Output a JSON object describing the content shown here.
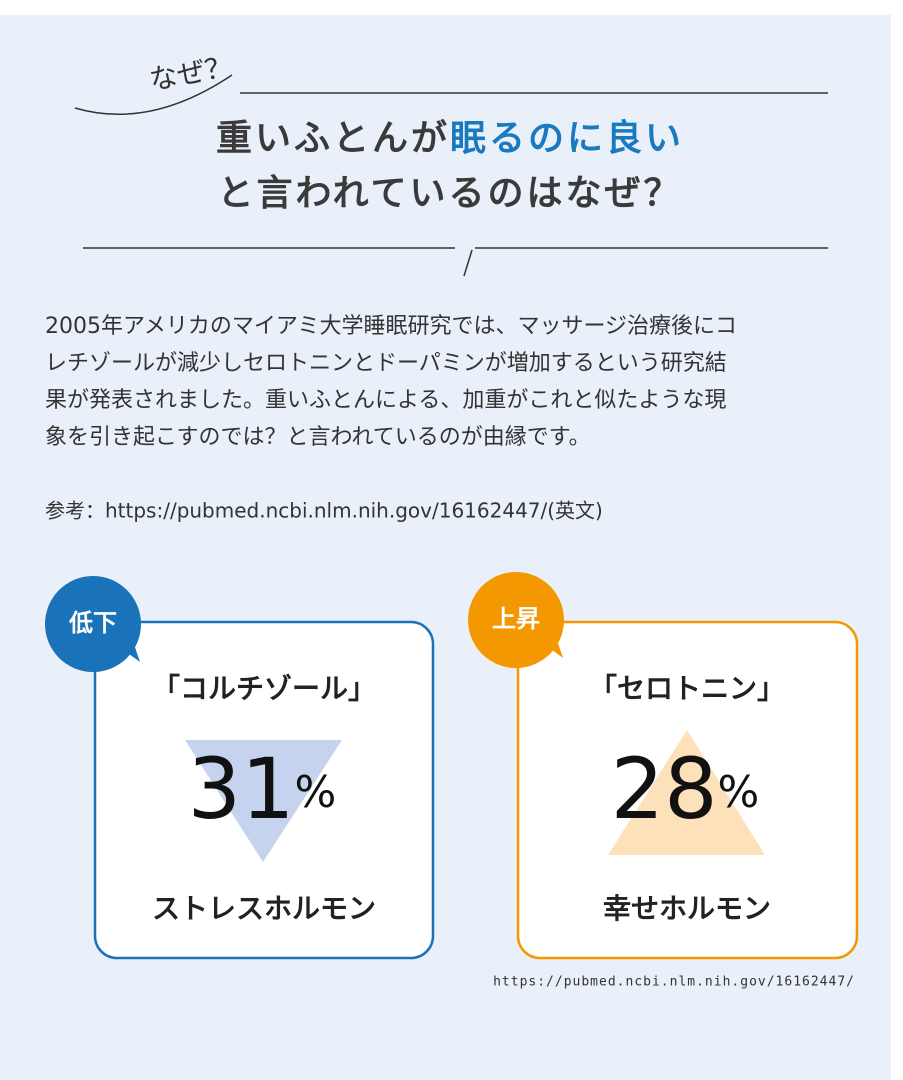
{
  "header": {
    "eyebrow": "なぜ？",
    "title": {
      "line1_plain": "重いふとんが",
      "line1_highlight": "眠るのに良い",
      "line2": "と言われているのはなぜ？"
    }
  },
  "body": {
    "paragraph_lines": [
      "2005年アメリカのマイアミ大学睡眠研究では、マッサージ治療後にコ",
      "レチゾールが減少しセロトニンとドーパミンが増加するという研究結",
      "果が発表されました。重いふとんによる、加重がこれと似たような現",
      "象を引き起こすのでは？と言われているのが由縁です。"
    ],
    "reference": "参考：https://pubmed.ncbi.nlm.nih.gov/16162447/(英文)"
  },
  "cards": [
    {
      "badge": "低下",
      "name": "「コルチゾール」",
      "value": 31,
      "unit": "%",
      "caption": "ストレスホルモン"
    },
    {
      "badge": "上昇",
      "name": "「セロトニン」",
      "value": 28,
      "unit": "%",
      "caption": "幸せホルモン"
    }
  ],
  "source": "https://pubmed.ncbi.nlm.nih.gov/16162447/"
}
